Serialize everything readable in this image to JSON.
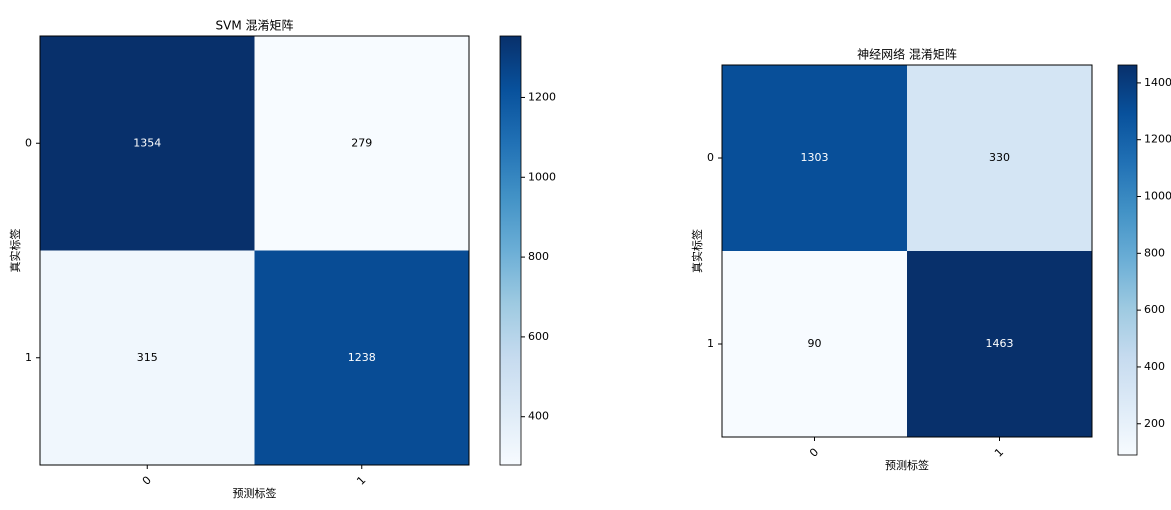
{
  "chart_data": [
    {
      "type": "heatmap",
      "title": "SVM 混淆矩阵",
      "xlabel": "预测标签",
      "ylabel": "真实标签",
      "x_categories": [
        "0",
        "1"
      ],
      "y_categories": [
        "0",
        "1"
      ],
      "values": [
        [
          1354,
          279
        ],
        [
          315,
          1238
        ]
      ],
      "colormap": "Blues",
      "colorbar_lim": [
        279,
        1354
      ],
      "colorbar_ticks": [
        400,
        600,
        800,
        1000,
        1200
      ]
    },
    {
      "type": "heatmap",
      "title": "神经网络 混淆矩阵",
      "xlabel": "预测标签",
      "ylabel": "真实标签",
      "x_categories": [
        "0",
        "1"
      ],
      "y_categories": [
        "0",
        "1"
      ],
      "values": [
        [
          1303,
          330
        ],
        [
          90,
          1463
        ]
      ],
      "colormap": "Blues",
      "colorbar_lim": [
        90,
        1463
      ],
      "colorbar_ticks": [
        200,
        400,
        600,
        800,
        1000,
        1200,
        1400
      ]
    }
  ]
}
